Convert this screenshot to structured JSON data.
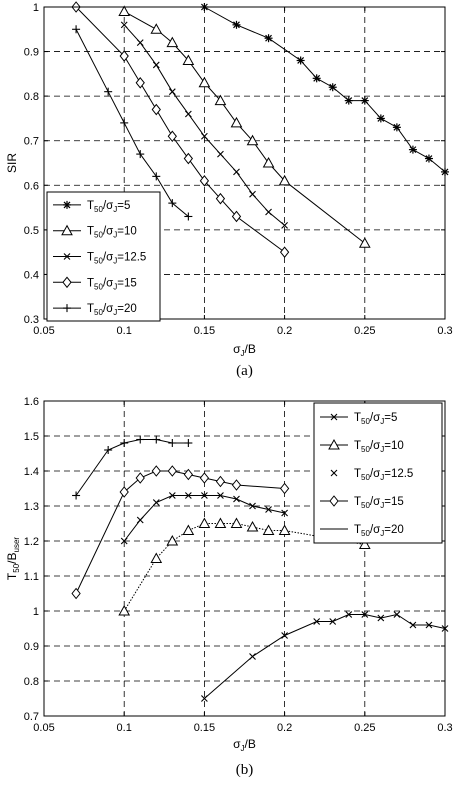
{
  "chart_data": [
    {
      "type": "line",
      "panel_label": "(a)",
      "xlabel": "σJ/B",
      "ylabel": "SIR",
      "xlim": [
        0.05,
        0.3
      ],
      "ylim": [
        0.3,
        1
      ],
      "xticks": [
        "0.05",
        "0.1",
        "0.15",
        "0.2",
        "0.25",
        "0.3"
      ],
      "yticks": [
        "0.3",
        "0.4",
        "0.5",
        "0.6",
        "0.7",
        "0.8",
        "0.9",
        "1"
      ],
      "grid": "dashed",
      "legend_position": "bottom-left",
      "series": [
        {
          "name": "T50/σJ=5",
          "marker": "star",
          "x": [
            0.15,
            0.17,
            0.19,
            0.21,
            0.22,
            0.23,
            0.24,
            0.25,
            0.26,
            0.27,
            0.28,
            0.29,
            0.3
          ],
          "y": [
            1.0,
            0.96,
            0.93,
            0.88,
            0.84,
            0.82,
            0.79,
            0.79,
            0.75,
            0.73,
            0.68,
            0.66,
            0.63
          ]
        },
        {
          "name": "T50/σJ=10",
          "marker": "triangle",
          "x": [
            0.1,
            0.12,
            0.13,
            0.14,
            0.15,
            0.16,
            0.17,
            0.18,
            0.19,
            0.2,
            0.25
          ],
          "y": [
            0.99,
            0.95,
            0.92,
            0.88,
            0.83,
            0.79,
            0.74,
            0.7,
            0.65,
            0.61,
            0.47
          ]
        },
        {
          "name": "T50/σJ=12.5",
          "marker": "x",
          "x": [
            0.1,
            0.11,
            0.12,
            0.13,
            0.14,
            0.15,
            0.16,
            0.17,
            0.18,
            0.19,
            0.2
          ],
          "y": [
            0.96,
            0.92,
            0.87,
            0.81,
            0.76,
            0.71,
            0.67,
            0.63,
            0.58,
            0.54,
            0.51
          ]
        },
        {
          "name": "T50/σJ=15",
          "marker": "diamond",
          "x": [
            0.07,
            0.1,
            0.11,
            0.12,
            0.13,
            0.14,
            0.15,
            0.16,
            0.17,
            0.2
          ],
          "y": [
            1.0,
            0.89,
            0.83,
            0.77,
            0.71,
            0.66,
            0.61,
            0.57,
            0.53,
            0.45
          ]
        },
        {
          "name": "T50/σJ=20",
          "marker": "plus",
          "x": [
            0.07,
            0.09,
            0.1,
            0.11,
            0.12,
            0.13,
            0.14
          ],
          "y": [
            0.95,
            0.81,
            0.74,
            0.67,
            0.62,
            0.56,
            0.53
          ]
        }
      ]
    },
    {
      "type": "line",
      "panel_label": "(b)",
      "xlabel": "σJ/B",
      "ylabel": "T50/Buser",
      "xlim": [
        0.05,
        0.3
      ],
      "ylim": [
        0.7,
        1.6
      ],
      "xticks": [
        "0.05",
        "0.1",
        "0.15",
        "0.2",
        "0.25",
        "0.3"
      ],
      "yticks": [
        "0.7",
        "0.8",
        "0.9",
        "1",
        "1.1",
        "1.2",
        "1.3",
        "1.4",
        "1.5",
        "1.6"
      ],
      "grid": "dashed",
      "legend_position": "top-right",
      "series": [
        {
          "name": "T50/σJ=5",
          "marker": "x",
          "x": [
            0.15,
            0.18,
            0.2,
            0.22,
            0.23,
            0.24,
            0.25,
            0.26,
            0.27,
            0.28,
            0.29,
            0.3
          ],
          "y": [
            0.75,
            0.87,
            0.93,
            0.97,
            0.97,
            0.99,
            0.99,
            0.98,
            0.99,
            0.96,
            0.96,
            0.95
          ]
        },
        {
          "name": "T50/σJ=10",
          "marker": "triangle",
          "x": [
            0.1,
            0.12,
            0.13,
            0.14,
            0.15,
            0.16,
            0.17,
            0.18,
            0.19,
            0.2,
            0.25
          ],
          "y": [
            1.0,
            1.15,
            1.2,
            1.23,
            1.25,
            1.25,
            1.25,
            1.24,
            1.23,
            1.23,
            1.19
          ]
        },
        {
          "name": "T50/σJ=12.5",
          "marker": "x",
          "x": [
            0.1,
            0.11,
            0.12,
            0.13,
            0.14,
            0.15,
            0.16,
            0.17,
            0.18,
            0.19,
            0.2
          ],
          "y": [
            1.2,
            1.26,
            1.31,
            1.33,
            1.33,
            1.33,
            1.33,
            1.32,
            1.3,
            1.29,
            1.28
          ]
        },
        {
          "name": "T50/σJ=15",
          "marker": "diamond",
          "x": [
            0.07,
            0.1,
            0.11,
            0.12,
            0.13,
            0.14,
            0.15,
            0.16,
            0.17,
            0.2
          ],
          "y": [
            1.05,
            1.34,
            1.38,
            1.4,
            1.4,
            1.39,
            1.38,
            1.37,
            1.36,
            1.35
          ]
        },
        {
          "name": "T50/σJ=20",
          "marker": "plus",
          "x": [
            0.07,
            0.09,
            0.1,
            0.11,
            0.12,
            0.13,
            0.14
          ],
          "y": [
            1.33,
            1.46,
            1.48,
            1.49,
            1.49,
            1.48,
            1.48
          ]
        }
      ]
    }
  ]
}
